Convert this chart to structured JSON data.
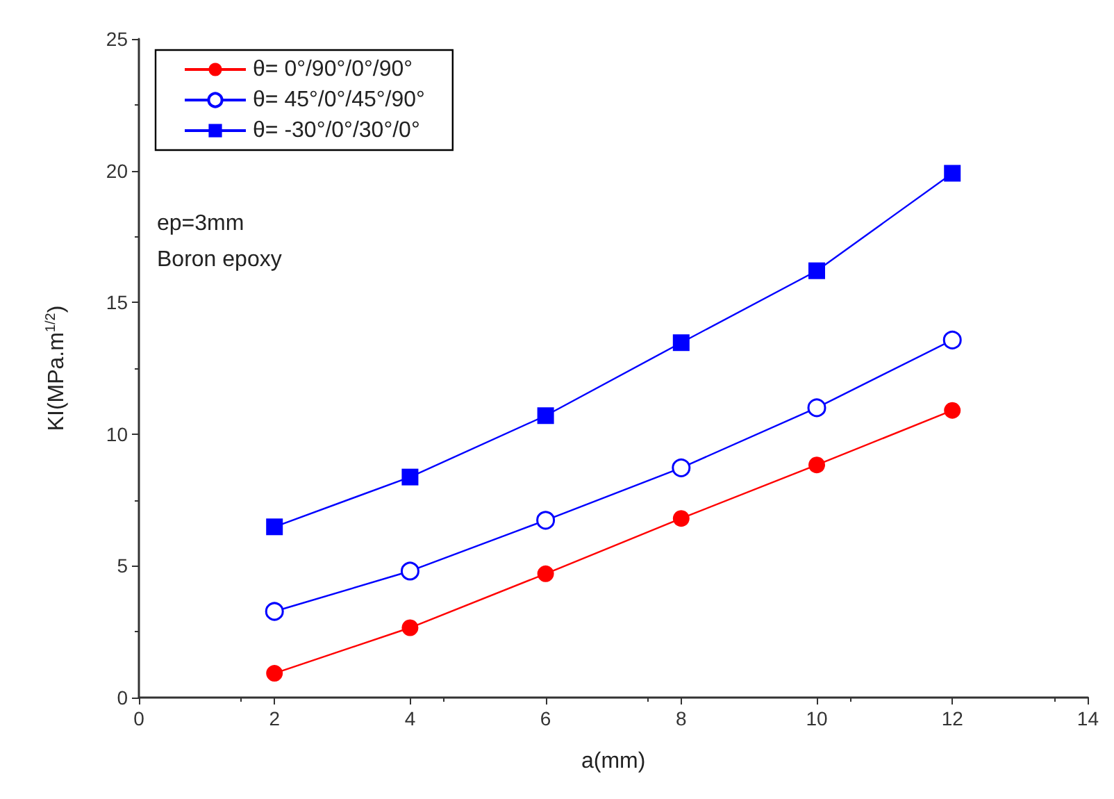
{
  "chart_data": {
    "type": "line",
    "xlabel": "a(mm)",
    "ylabel": "KI(MPa.m$^{1/2}$)",
    "x": [
      2,
      4,
      6,
      8,
      10,
      12
    ],
    "series": [
      {
        "name": "θ= 0°/90°/0°/90°",
        "color": "#ff0000",
        "marker": "circle",
        "values": [
          0.92,
          2.65,
          4.7,
          6.8,
          8.83,
          10.9
        ]
      },
      {
        "name": "θ= 45°/0°/45°/90°",
        "color": "#0000ff",
        "marker": "open circle",
        "values": [
          3.27,
          4.8,
          6.73,
          8.72,
          11.0,
          13.57
        ]
      },
      {
        "name": "θ= -30°/0°/30°/0°",
        "color": "#0000ff",
        "marker": "square",
        "values": [
          6.48,
          8.37,
          10.7,
          13.47,
          16.2,
          19.9
        ]
      }
    ],
    "xlim": [
      0,
      14
    ],
    "xticks": [
      0,
      2,
      4,
      6,
      8,
      10,
      12,
      14
    ],
    "ylim": [
      0,
      25
    ],
    "yticks": [
      0,
      5,
      10,
      15,
      20,
      25
    ],
    "grid": false,
    "legend": "top left",
    "line_style": "solid",
    "annotations": [
      "ep=3mm",
      "Boron epoxy"
    ]
  }
}
